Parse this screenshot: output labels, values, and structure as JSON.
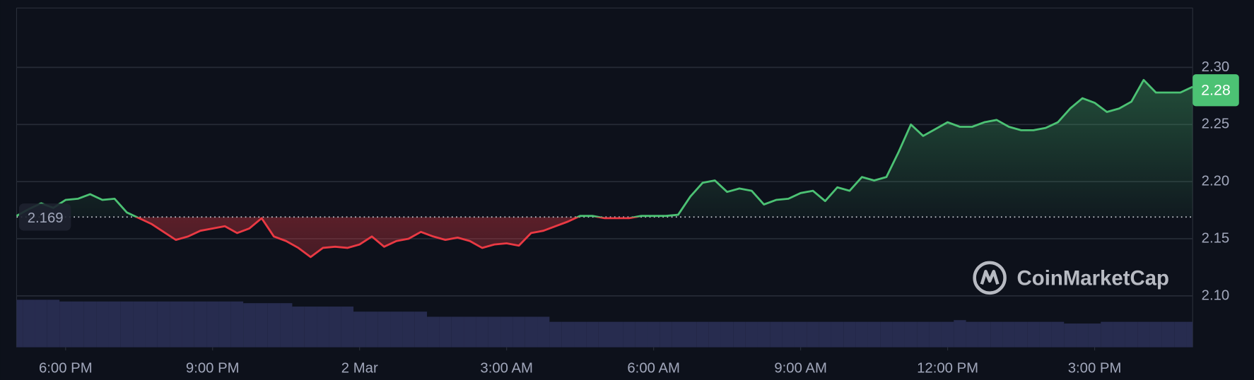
{
  "chart_data": {
    "type": "line",
    "values": [
      2.17,
      2.176,
      2.181,
      2.177,
      2.184,
      2.185,
      2.189,
      2.184,
      2.185,
      2.173,
      2.168,
      2.163,
      2.156,
      2.149,
      2.152,
      2.157,
      2.159,
      2.161,
      2.155,
      2.159,
      2.168,
      2.152,
      2.148,
      2.142,
      2.134,
      2.142,
      2.143,
      2.142,
      2.145,
      2.152,
      2.143,
      2.148,
      2.15,
      2.156,
      2.152,
      2.149,
      2.151,
      2.148,
      2.142,
      2.145,
      2.146,
      2.144,
      2.155,
      2.157,
      2.161,
      2.165,
      2.17,
      2.17,
      2.168,
      2.168,
      2.168,
      2.17,
      2.17,
      2.17,
      2.171,
      2.187,
      2.199,
      2.201,
      2.191,
      2.194,
      2.192,
      2.18,
      2.184,
      2.185,
      2.19,
      2.192,
      2.183,
      2.195,
      2.192,
      2.204,
      2.201,
      2.204,
      2.226,
      2.25,
      2.24,
      2.246,
      2.252,
      2.248,
      2.248,
      2.252,
      2.254,
      2.248,
      2.245,
      2.245,
      2.247,
      2.252,
      2.264,
      2.273,
      2.269,
      2.261,
      2.264,
      2.27,
      2.289,
      2.278,
      2.278,
      2.278,
      2.283
    ],
    "volume": [
      14,
      14,
      14,
      14,
      13.5,
      13.5,
      13.5,
      13.5,
      13.5,
      13.5,
      13.5,
      13.5,
      13.5,
      13.5,
      13.5,
      13.5,
      13.5,
      13.5,
      13.5,
      13,
      13,
      13,
      13,
      12,
      12,
      12,
      12,
      12,
      10.5,
      10.5,
      10.5,
      10.5,
      10.5,
      10.5,
      9,
      9,
      9,
      9,
      9,
      9,
      9,
      9,
      9,
      9,
      7.5,
      7.5,
      7.5,
      7.5,
      7.5,
      7.5,
      7.5,
      7.5,
      7.5,
      7.5,
      7.5,
      7.5,
      7.5,
      7.5,
      7.5,
      7.5,
      7.5,
      7.5,
      7.5,
      7.5,
      7.5,
      7.5,
      7.5,
      7.5,
      7.5,
      7.5,
      7.5,
      7.5,
      7.5,
      7.5,
      7.5,
      7.5,
      7.5,
      8,
      7.5,
      7.5,
      7.5,
      7.5,
      7.5,
      7.5,
      7.5,
      7.5,
      7,
      7,
      7,
      7.5,
      7.5,
      7.5,
      7.5,
      7.5,
      7.5,
      7.5,
      7.5
    ],
    "volume_lim": [
      0,
      100
    ],
    "xlim": [
      0,
      96
    ],
    "xticks": [
      {
        "value": 4,
        "label": "6:00 PM"
      },
      {
        "value": 16,
        "label": "9:00 PM"
      },
      {
        "value": 28,
        "label": "2 Mar"
      },
      {
        "value": 40,
        "label": "3:00 AM"
      },
      {
        "value": 52,
        "label": "6:00 AM"
      },
      {
        "value": 64,
        "label": "9:00 AM"
      },
      {
        "value": 76,
        "label": "12:00 PM"
      },
      {
        "value": 88,
        "label": "3:00 PM"
      }
    ],
    "ylim": [
      2.055,
      2.352
    ],
    "yticks": [
      {
        "value": 2.1,
        "label": "2.10"
      },
      2.15,
      {
        "value": 2.2,
        "label": "2.20"
      },
      2.25,
      {
        "value": 2.3,
        "label": "2.30"
      }
    ],
    "baseline": 2.169,
    "current_price": 2.28,
    "up_color": "#4cc274",
    "down_color": "#ea3943",
    "volume_color": "#272c4f",
    "grid": true,
    "watermark": "CoinMarketCap"
  }
}
